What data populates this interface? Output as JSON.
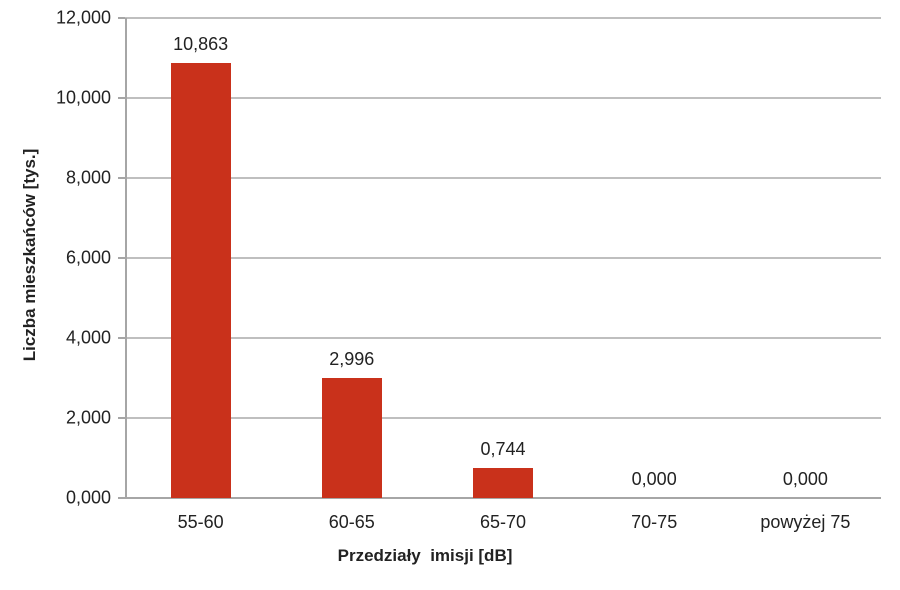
{
  "chart_data": {
    "type": "bar",
    "title": "",
    "categories": [
      "55-60",
      "60-65",
      "65-70",
      "70-75",
      "powyżej 75"
    ],
    "values": [
      10.863,
      2.996,
      0.744,
      0,
      0
    ],
    "value_labels": [
      "10,863",
      "2,996",
      "0,744",
      "0,000",
      "0,000"
    ],
    "yticks_labels": [
      "0,000",
      "2,000",
      "4,000",
      "6,000",
      "8,000",
      "10,000",
      "12,000"
    ],
    "yticks_values": [
      0,
      2,
      4,
      6,
      8,
      10,
      12
    ],
    "ylim": [
      0,
      12
    ],
    "xlabel": "Przedziały  imisji [dB]",
    "ylabel": "Liczba mieszkańców [tys.]",
    "grid": "horizontal",
    "legend": "none",
    "colors": {
      "bar": "#c9311b",
      "gridline": "#bfbfbf",
      "axis": "#a6a6a6",
      "text": "#222222",
      "background": "#ffffff"
    }
  }
}
